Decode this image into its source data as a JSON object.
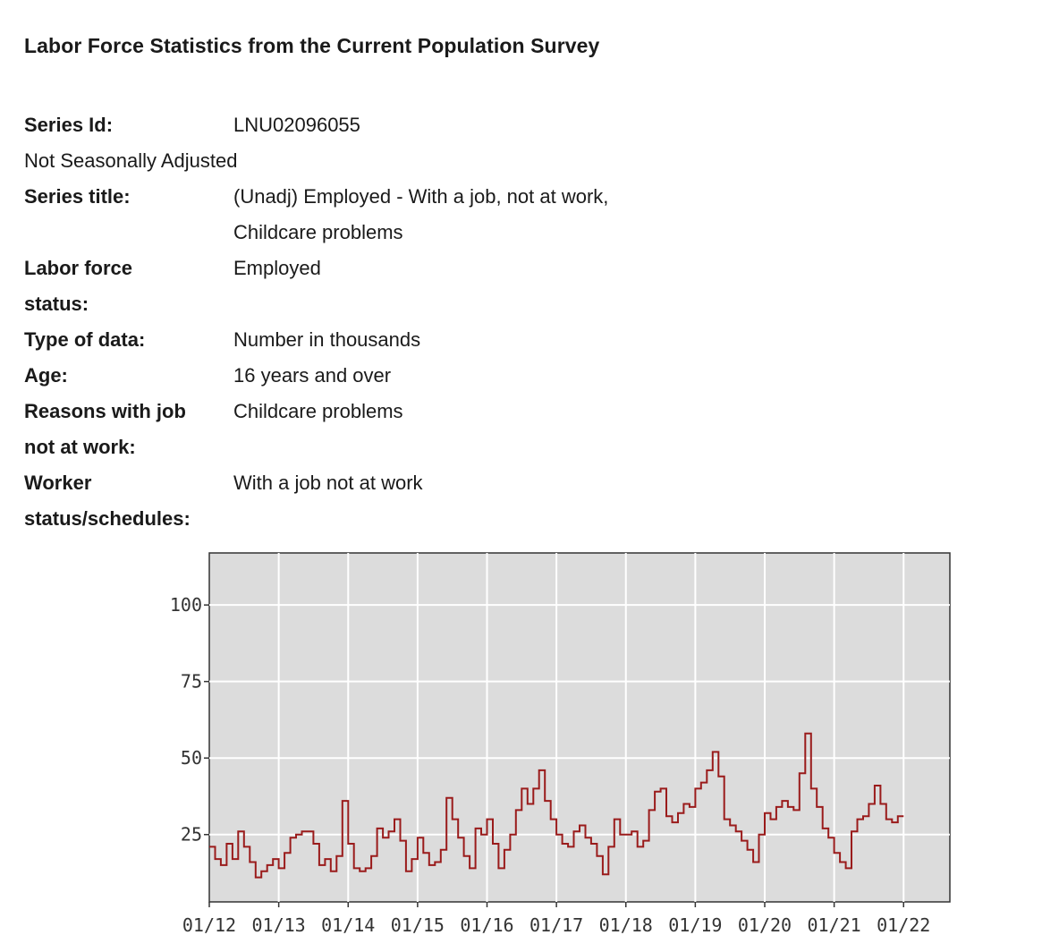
{
  "page": {
    "title": "Labor Force Statistics from the Current Population Survey"
  },
  "series": {
    "series_id_label": "Series Id:",
    "series_id": "LNU02096055",
    "adjustment": "Not Seasonally Adjusted",
    "series_title_label": "Series title:",
    "series_title": "(Unadj) Employed - With a job, not at work, Childcare problems",
    "labor_force_status_label": "Labor force status:",
    "labor_force_status": "Employed",
    "type_of_data_label": "Type of data:",
    "type_of_data": "Number in thousands",
    "age_label": "Age:",
    "age": "16 years and over",
    "reasons_label": "Reasons with job not at work:",
    "reasons": "Childcare problems",
    "worker_status_label": "Worker status/schedules:",
    "worker_status": "With a job not at work"
  },
  "chart_data": {
    "type": "line",
    "title": "",
    "xlabel": "",
    "ylabel": "",
    "x_tick_labels": [
      "01/12",
      "01/13",
      "01/14",
      "01/15",
      "01/16",
      "01/17",
      "01/18",
      "01/19",
      "01/20",
      "01/21",
      "01/22"
    ],
    "y_ticks": [
      25,
      50,
      75,
      100
    ],
    "ylim": [
      3,
      117
    ],
    "xlim_months": [
      0,
      128
    ],
    "grid": true,
    "line_color": "#9a1b1b",
    "background_color": "#dcdcdc",
    "x_start": "2012-01",
    "values": [
      21,
      17,
      15,
      22,
      17,
      26,
      21,
      16,
      11,
      13,
      15,
      17,
      14,
      19,
      24,
      25,
      26,
      26,
      22,
      15,
      17,
      13,
      18,
      36,
      22,
      14,
      13,
      14,
      18,
      27,
      24,
      26,
      30,
      23,
      13,
      17,
      24,
      19,
      15,
      16,
      20,
      37,
      30,
      24,
      18,
      14,
      27,
      25,
      30,
      22,
      14,
      20,
      25,
      33,
      40,
      35,
      40,
      46,
      36,
      30,
      25,
      22,
      21,
      26,
      28,
      24,
      22,
      18,
      12,
      21,
      30,
      25,
      25,
      26,
      21,
      23,
      33,
      39,
      40,
      31,
      29,
      32,
      35,
      34,
      40,
      42,
      46,
      52,
      44,
      30,
      28,
      26,
      23,
      20,
      16,
      25,
      32,
      30,
      34,
      36,
      34,
      33,
      45,
      58,
      40,
      34,
      27,
      24,
      19,
      16,
      14,
      26,
      30,
      31,
      35,
      41,
      35,
      30,
      29,
      31
    ]
  }
}
